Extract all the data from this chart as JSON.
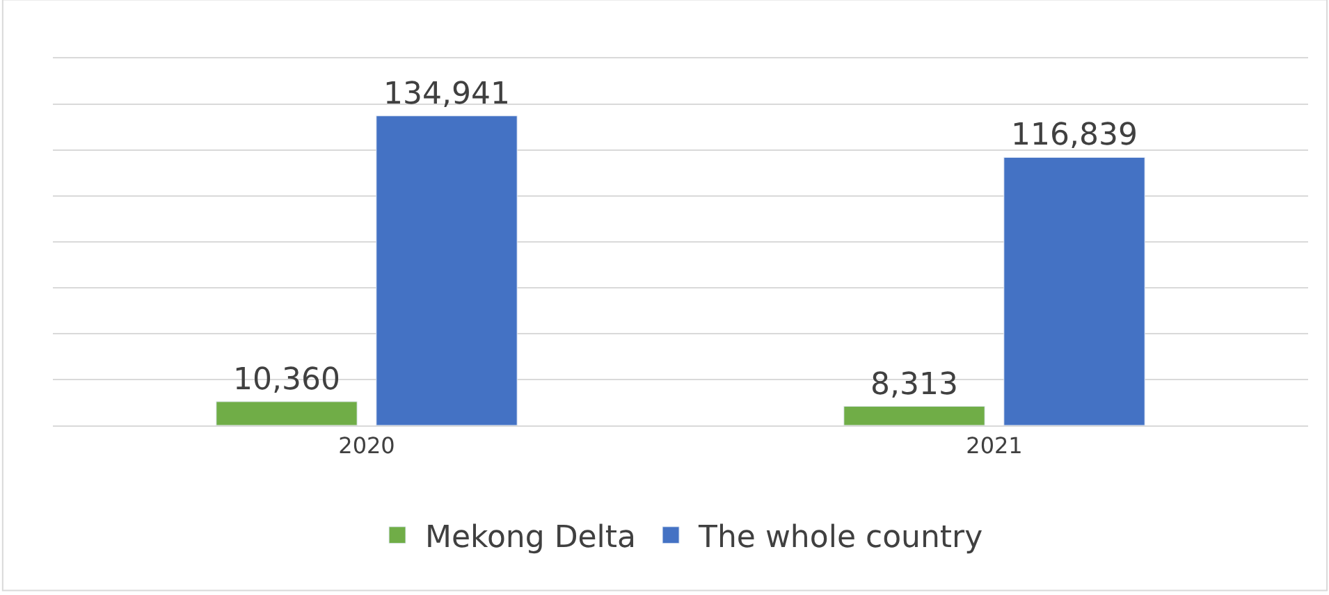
{
  "chart_data": {
    "type": "bar",
    "categories": [
      "2020",
      "2021"
    ],
    "series": [
      {
        "name": "Mekong Delta",
        "color": "#70ad47",
        "values": [
          10360,
          8313
        ],
        "value_labels": [
          "10,360",
          "8,313"
        ]
      },
      {
        "name": "The whole country",
        "color": "#4472c4",
        "values": [
          134941,
          116839
        ],
        "value_labels": [
          "134,941",
          "116,839"
        ]
      }
    ],
    "ylim": [
      0,
      160000
    ],
    "yticks": [
      {
        "value": 0,
        "label": null
      },
      {
        "value": 20000,
        "label": null
      },
      {
        "value": 40000,
        "label": null
      },
      {
        "value": 60000,
        "label": null
      },
      {
        "value": 80000,
        "label": null
      },
      {
        "value": 100000,
        "label": null
      },
      {
        "value": 120000,
        "label": null
      },
      {
        "value": 140000,
        "label": null
      },
      {
        "value": 160000,
        "label": null
      }
    ],
    "tick_labels": "x",
    "grid": "y",
    "legend": "bottom"
  }
}
